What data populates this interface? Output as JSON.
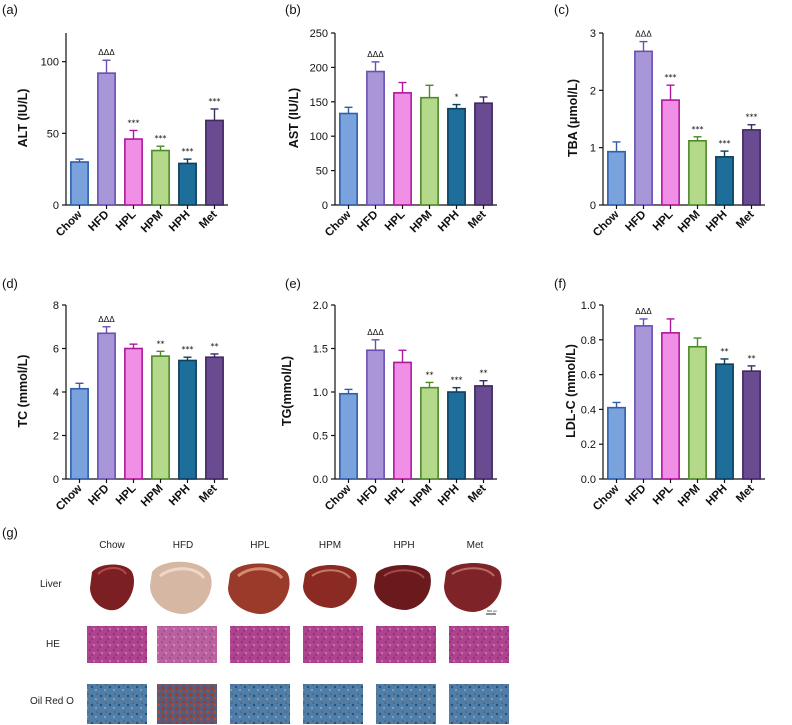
{
  "colors": {
    "Chow": {
      "fill": "#7aa3de",
      "stroke": "#2f5fa8"
    },
    "HFD": {
      "fill": "#a996d8",
      "stroke": "#6a4fb0"
    },
    "HPL": {
      "fill": "#f08fe6",
      "stroke": "#b0189c"
    },
    "HPM": {
      "fill": "#b5d98a",
      "stroke": "#4d8a2a"
    },
    "HPH": {
      "fill": "#1e6e9c",
      "stroke": "#0e3f5e"
    },
    "Met": {
      "fill": "#6a4b92",
      "stroke": "#3f2a62"
    }
  },
  "chart_data": [
    {
      "panel": "(a)",
      "type": "bar",
      "categories": [
        "Chow",
        "HFD",
        "HPL",
        "HPM",
        "HPH",
        "Met"
      ],
      "values": [
        30,
        92,
        46,
        38,
        29,
        59
      ],
      "errors": [
        2,
        9,
        6,
        3,
        3,
        8
      ],
      "significance": [
        "",
        "ΔΔΔ",
        "***",
        "***",
        "***",
        "***"
      ],
      "ylabel": "ALT (IU/L)",
      "ylim": [
        0,
        120
      ],
      "yticks": [
        0,
        50,
        100
      ],
      "tick_labels": [
        "0",
        "50",
        "100"
      ]
    },
    {
      "panel": "(b)",
      "type": "bar",
      "categories": [
        "Chow",
        "HFD",
        "HPL",
        "HPM",
        "HPH",
        "Met"
      ],
      "values": [
        133,
        194,
        163,
        156,
        140,
        148
      ],
      "errors": [
        9,
        14,
        15,
        18,
        6,
        9
      ],
      "significance": [
        "",
        "ΔΔΔ",
        "",
        "",
        "*",
        ""
      ],
      "ylabel": "AST (IU/L)",
      "ylim": [
        0,
        250
      ],
      "yticks": [
        0,
        50,
        100,
        150,
        200,
        250
      ],
      "tick_labels": [
        "0",
        "50",
        "100",
        "150",
        "200",
        "250"
      ]
    },
    {
      "panel": "(c)",
      "type": "bar",
      "categories": [
        "Chow",
        "HFD",
        "HPL",
        "HPM",
        "HPH",
        "Met"
      ],
      "values": [
        0.93,
        2.68,
        1.83,
        1.12,
        0.84,
        1.31
      ],
      "errors": [
        0.17,
        0.17,
        0.26,
        0.07,
        0.1,
        0.09
      ],
      "significance": [
        "",
        "ΔΔΔ",
        "***",
        "***",
        "***",
        "***"
      ],
      "ylabel": "TBA (μmol/L)",
      "ylim": [
        0,
        3
      ],
      "yticks": [
        0,
        1,
        2,
        3
      ],
      "tick_labels": [
        "0",
        "1",
        "2",
        "3"
      ]
    },
    {
      "panel": "(d)",
      "type": "bar",
      "categories": [
        "Chow",
        "HFD",
        "HPL",
        "HPM",
        "HPH",
        "Met"
      ],
      "values": [
        4.15,
        6.7,
        6.0,
        5.65,
        5.45,
        5.6
      ],
      "errors": [
        0.25,
        0.3,
        0.2,
        0.22,
        0.15,
        0.15
      ],
      "significance": [
        "",
        "ΔΔΔ",
        "",
        "**",
        "***",
        "**"
      ],
      "ylabel": "TC (mmol/L)",
      "ylim": [
        0,
        8
      ],
      "yticks": [
        0,
        2,
        4,
        6,
        8
      ],
      "tick_labels": [
        "0",
        "2",
        "4",
        "6",
        "8"
      ]
    },
    {
      "panel": "(e)",
      "type": "bar",
      "categories": [
        "Chow",
        "HFD",
        "HPL",
        "HPM",
        "HPH",
        "Met"
      ],
      "values": [
        0.98,
        1.48,
        1.34,
        1.05,
        1.0,
        1.07
      ],
      "errors": [
        0.05,
        0.12,
        0.14,
        0.06,
        0.05,
        0.06
      ],
      "significance": [
        "",
        "ΔΔΔ",
        "",
        "**",
        "***",
        "**"
      ],
      "ylabel": "TG(mmol/L)",
      "ylim": [
        0,
        2
      ],
      "yticks": [
        0,
        0.5,
        1.0,
        1.5,
        2.0
      ],
      "tick_labels": [
        "0.0",
        "0.5",
        "1.0",
        "1.5",
        "2.0"
      ]
    },
    {
      "panel": "(f)",
      "type": "bar",
      "categories": [
        "Chow",
        "HFD",
        "HPL",
        "HPM",
        "HPH",
        "Met"
      ],
      "values": [
        0.41,
        0.88,
        0.84,
        0.76,
        0.66,
        0.62
      ],
      "errors": [
        0.03,
        0.04,
        0.08,
        0.05,
        0.03,
        0.03
      ],
      "significance": [
        "",
        "ΔΔΔ",
        "",
        "",
        "**",
        "**"
      ],
      "ylabel": "LDL-C (mmol/L)",
      "ylim": [
        0,
        1
      ],
      "yticks": [
        0,
        0.2,
        0.4,
        0.6,
        0.8,
        1.0
      ],
      "tick_labels": [
        "0.0",
        "0.2",
        "0.4",
        "0.6",
        "0.8",
        "1.0"
      ]
    }
  ],
  "histology": {
    "panel": "(g)",
    "columns": [
      "Chow",
      "HFD",
      "HPL",
      "HPM",
      "HPH",
      "Met"
    ],
    "rows": [
      "Liver",
      "HE",
      "Oil Red O"
    ],
    "scale_bar": "500 μm"
  }
}
